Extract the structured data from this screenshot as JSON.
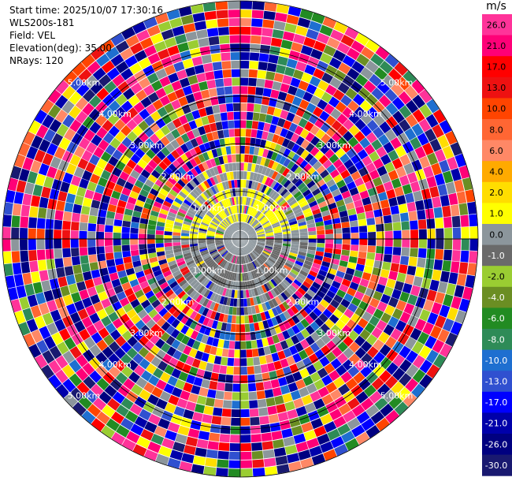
{
  "info": {
    "start_time": "Start time: 2025/10/07 17:30:16",
    "station": "WLS200s-181",
    "field": "Field: VEL",
    "elevation": "Elevation(deg): 35.00",
    "nrays": "NRays: 120"
  },
  "chart_data": {
    "type": "heatmap",
    "projection": "polar-ppi",
    "num_rays": 120,
    "max_range_km": 5.0,
    "ring_labels": [
      "1.00km",
      "2.00km",
      "3.00km",
      "4.00km",
      "5.00km"
    ],
    "colorbar": {
      "unit": "m/s",
      "labels": [
        "26.0",
        "21.0",
        "17.0",
        "13.0",
        "10.0",
        "8.0",
        "6.0",
        "4.0",
        "2.0",
        "1.0",
        "0.0",
        "-1.0",
        "-2.0",
        "-4.0",
        "-6.0",
        "-8.0",
        "-10.0",
        "-13.0",
        "-17.0",
        "-21.0",
        "-26.0",
        "-30.0"
      ],
      "colors": [
        "#ff3399",
        "#ff0077",
        "#ff0000",
        "#ee1111",
        "#ff4400",
        "#ff6633",
        "#ff8866",
        "#ffaa00",
        "#ffdd00",
        "#ffff00",
        "#8c969c",
        "#6a6a6a",
        "#9acd32",
        "#6b8e23",
        "#228b22",
        "#2e8b57",
        "#1e6fd0",
        "#3050d0",
        "#0000ff",
        "#0000aa",
        "#000080",
        "#191970"
      ]
    },
    "inner_region": {
      "radius_km": 1.75,
      "upper_half": "1.0",
      "lower_half": "-1.0",
      "fill_color": "#8c969c"
    }
  }
}
